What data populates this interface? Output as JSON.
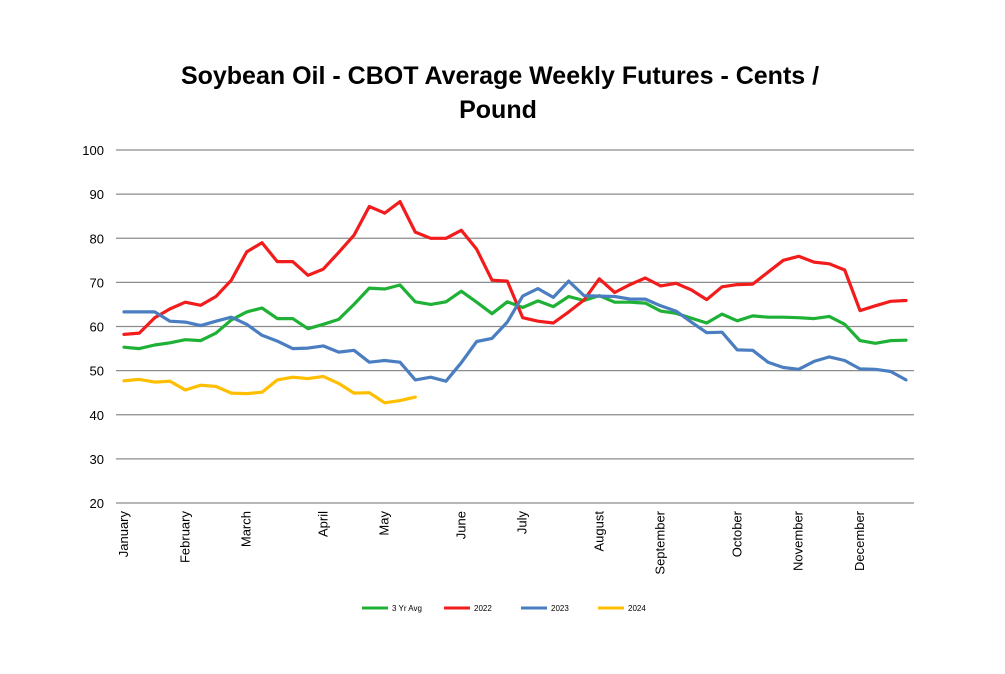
{
  "chart_data": {
    "type": "line",
    "title_line1": "Soybean Oil - CBOT Average Weekly Futures - Cents /",
    "title_line2": "Pound",
    "xlabel": "",
    "ylabel": "",
    "ylim": [
      20,
      100
    ],
    "yticks": [
      20,
      30,
      40,
      50,
      60,
      70,
      80,
      90,
      100
    ],
    "grid": true,
    "legend_position": "bottom",
    "weeks": 52,
    "month_labels": [
      {
        "label": "January",
        "week": 0
      },
      {
        "label": "February",
        "week": 4
      },
      {
        "label": "March",
        "week": 8
      },
      {
        "label": "April",
        "week": 13
      },
      {
        "label": "May",
        "week": 17
      },
      {
        "label": "June",
        "week": 22
      },
      {
        "label": "July",
        "week": 26
      },
      {
        "label": "August",
        "week": 31
      },
      {
        "label": "September",
        "week": 35
      },
      {
        "label": "October",
        "week": 40
      },
      {
        "label": "November",
        "week": 44
      },
      {
        "label": "December",
        "week": 48
      }
    ],
    "series": [
      {
        "name": "3 Yr Avg",
        "color": "#1eb136",
        "values": [
          55.3,
          55.0,
          55.8,
          56.3,
          57.0,
          56.8,
          58.5,
          61.5,
          63.3,
          64.2,
          61.8,
          61.8,
          59.5,
          60.5,
          61.6,
          65.0,
          68.7,
          68.5,
          69.4,
          65.6,
          65.0,
          65.6,
          68.0,
          65.5,
          62.9,
          65.6,
          64.3,
          65.8,
          64.5,
          66.8,
          65.9,
          67.0,
          65.5,
          65.5,
          65.3,
          63.5,
          63.0,
          61.9,
          60.8,
          62.8,
          61.3,
          62.4,
          62.1,
          62.1,
          62.0,
          61.8,
          62.3,
          60.5,
          56.8,
          56.2,
          56.8,
          56.9
        ]
      },
      {
        "name": "2022",
        "color": "#f21c1c",
        "values": [
          58.2,
          58.5,
          62.0,
          64.0,
          65.5,
          64.8,
          66.8,
          70.5,
          76.9,
          79.0,
          74.7,
          74.7,
          71.6,
          73.0,
          76.8,
          80.7,
          87.2,
          85.7,
          88.3,
          81.4,
          80.0,
          80.0,
          81.8,
          77.5,
          70.5,
          70.3,
          62.0,
          61.2,
          60.8,
          63.3,
          66.0,
          70.8,
          67.7,
          69.5,
          71.0,
          69.2,
          69.8,
          68.3,
          66.1,
          69.0,
          69.5,
          69.6,
          72.3,
          75.0,
          75.9,
          74.6,
          74.2,
          72.8,
          63.6,
          64.7,
          65.7,
          65.9
        ]
      },
      {
        "name": "2023",
        "color": "#4a7ec0",
        "values": [
          63.3,
          63.3,
          63.3,
          61.2,
          61.0,
          60.2,
          61.2,
          62.1,
          60.5,
          58.0,
          56.7,
          55.0,
          55.1,
          55.6,
          54.2,
          54.6,
          51.9,
          52.3,
          51.9,
          47.9,
          48.5,
          47.6,
          51.8,
          56.6,
          57.3,
          61.0,
          66.9,
          68.6,
          66.6,
          70.3,
          67.0,
          66.9,
          66.8,
          66.2,
          66.2,
          64.7,
          63.5,
          61.0,
          58.6,
          58.7,
          54.7,
          54.6,
          51.9,
          50.7,
          50.3,
          52.1,
          53.1,
          52.3,
          50.4,
          50.3,
          49.8,
          47.9
        ]
      },
      {
        "name": "2024",
        "color": "#ffbf00",
        "values": [
          47.7,
          48.0,
          47.4,
          47.6,
          45.6,
          46.7,
          46.4,
          44.9,
          44.8,
          45.1,
          47.9,
          48.5,
          48.2,
          48.7,
          47.1,
          44.9,
          45.0,
          42.7,
          43.2,
          44.0
        ]
      }
    ]
  }
}
